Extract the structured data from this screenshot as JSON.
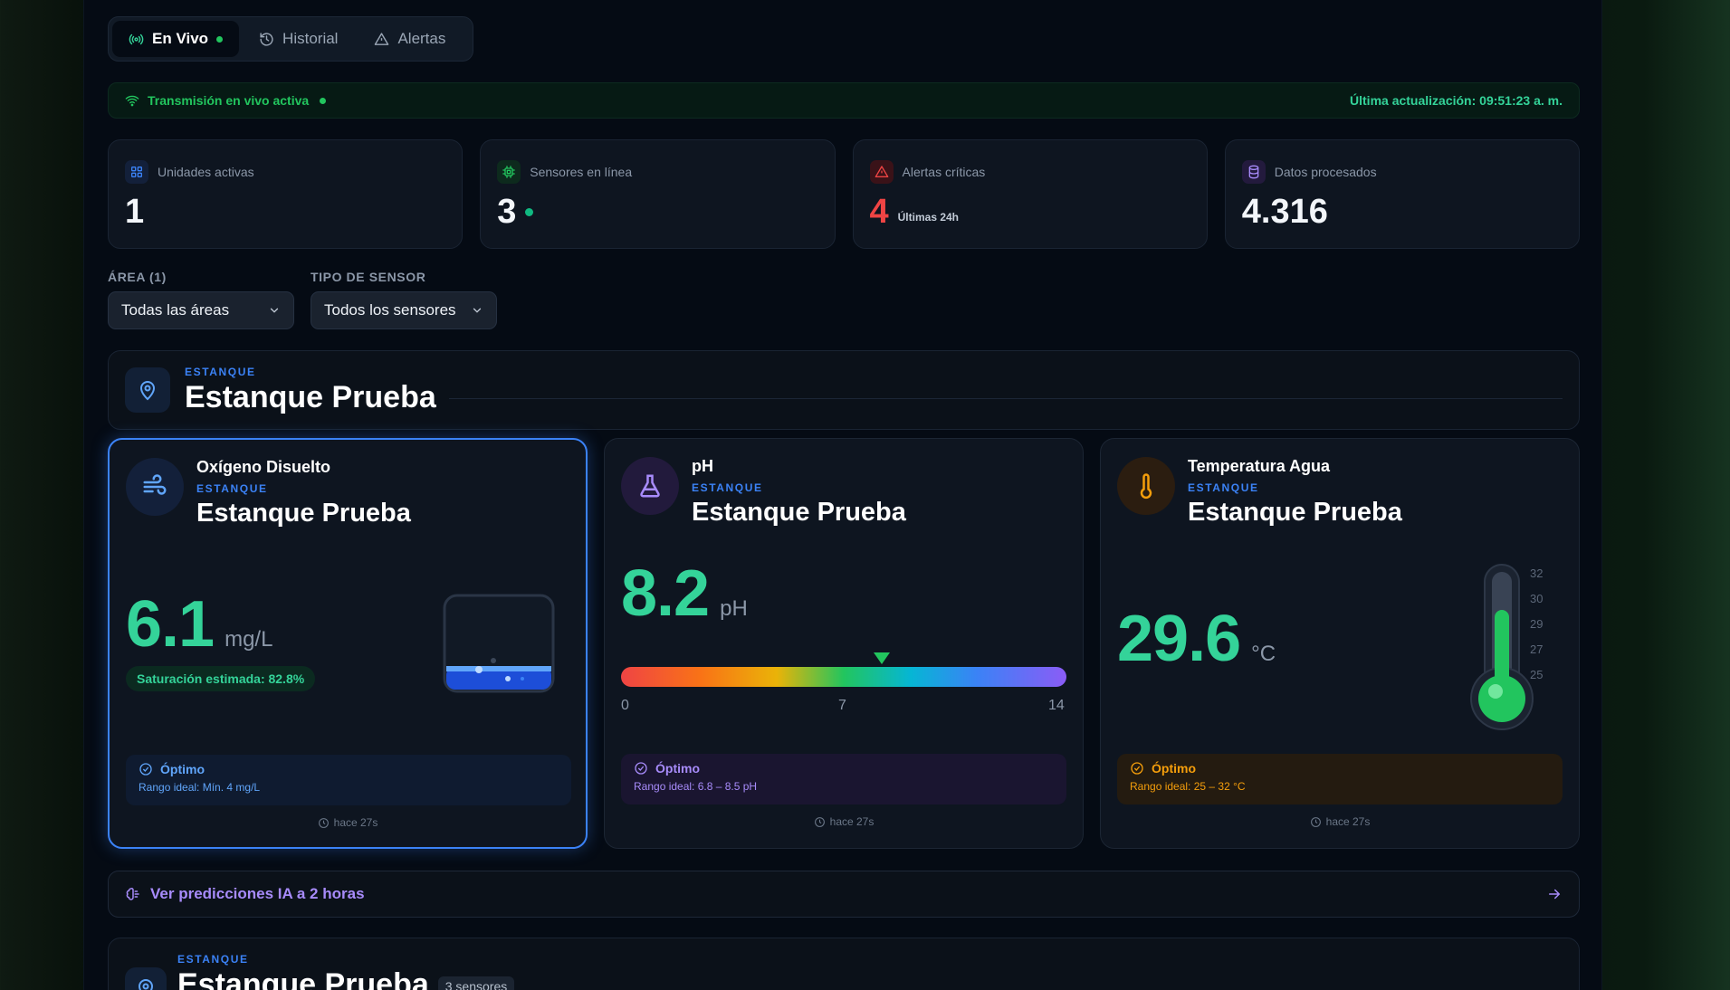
{
  "tabs": [
    {
      "label": "En Vivo",
      "icon": "broadcast-icon"
    },
    {
      "label": "Historial",
      "icon": "history-icon"
    },
    {
      "label": "Alertas",
      "icon": "warning-icon"
    }
  ],
  "livebar": {
    "status": "Transmisión en vivo activa",
    "updated": "Última actualización: 09:51:23 a. m."
  },
  "stats": [
    {
      "label": "Unidades activas",
      "value": "1",
      "icon": "grid-icon",
      "color": "#3b82f6"
    },
    {
      "label": "Sensores en línea",
      "value": "3",
      "icon": "chip-icon",
      "color": "#22c55e"
    },
    {
      "label": "Alertas críticas",
      "value": "4",
      "sub": "Últimas 24h",
      "icon": "alert-icon",
      "color": "#ef4444"
    },
    {
      "label": "Datos procesados",
      "value": "4.316",
      "icon": "database-icon",
      "color": "#a78bfa"
    }
  ],
  "filters": {
    "area_label": "ÁREA (1)",
    "area_value": "Todas las áreas",
    "sensor_label": "TIPO DE SENSOR",
    "sensor_value": "Todos los sensores"
  },
  "group": {
    "kicker": "ESTANQUE",
    "title": "Estanque Prueba"
  },
  "cards": [
    {
      "sensor": "Oxígeno Disuelto",
      "kicker": "ESTANQUE",
      "title": "Estanque Prueba",
      "value": "6.1",
      "unit": "mg/L",
      "saturation": "Saturación estimada: 82.8%",
      "status": "Óptimo",
      "range": "Rango ideal: Mín. 4 mg/L",
      "ago": "hace 27s",
      "icon": "wind-icon",
      "accent": "#3b82f6",
      "fill_level": 0.25
    },
    {
      "sensor": "pH",
      "kicker": "ESTANQUE",
      "title": "Estanque Prueba",
      "value": "8.2",
      "unit": "pH",
      "scale_min": "0",
      "scale_mid": "7",
      "scale_max": "14",
      "scale_value": 8.2,
      "status": "Óptimo",
      "range": "Rango ideal: 6.8 – 8.5 pH",
      "ago": "hace 27s",
      "icon": "flask-icon",
      "accent": "#a78bfa"
    },
    {
      "sensor": "Temperatura Agua",
      "kicker": "ESTANQUE",
      "title": "Estanque Prueba",
      "value": "29.6",
      "unit": "°C",
      "ticks": [
        "32",
        "30",
        "29",
        "27",
        "25"
      ],
      "fill_level": 0.5,
      "status": "Óptimo",
      "range": "Rango ideal: 25 – 32 °C",
      "ago": "hace 27s",
      "icon": "thermometer-icon",
      "accent": "#f59e0b"
    }
  ],
  "predictions": {
    "label": "Ver predicciones IA a 2 horas"
  },
  "group2": {
    "kicker": "ESTANQUE",
    "title": "Estanque Prueba",
    "badge": "3 sensores"
  }
}
